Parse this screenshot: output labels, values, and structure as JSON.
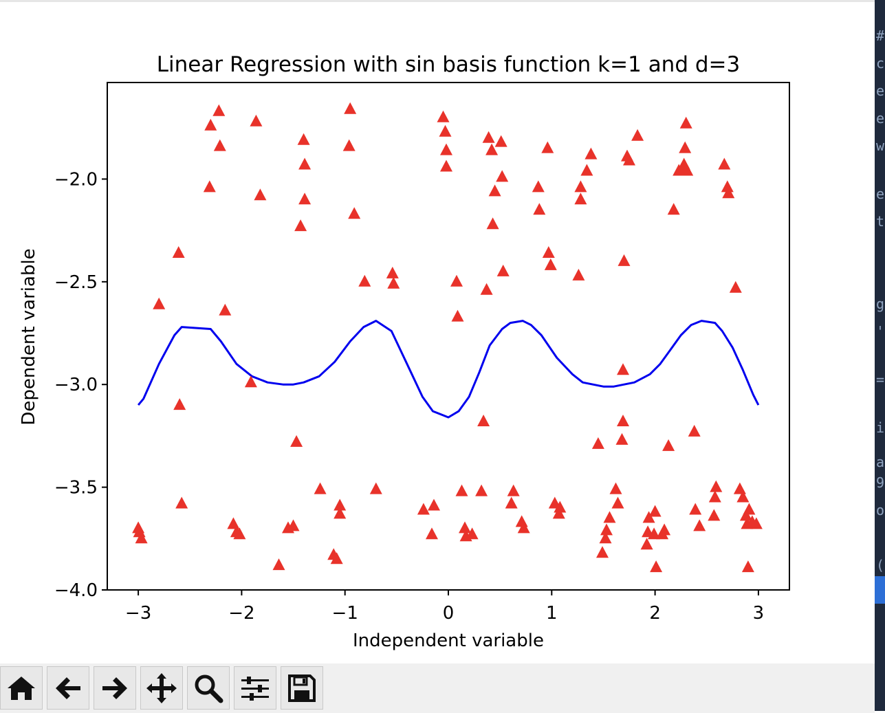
{
  "window": {
    "toolbar": {
      "buttons": [
        {
          "icon": "home-icon",
          "name": "home-button"
        },
        {
          "icon": "arrow-left-icon",
          "name": "back-button"
        },
        {
          "icon": "arrow-right-icon",
          "name": "forward-button"
        },
        {
          "icon": "move-icon",
          "name": "pan-button"
        },
        {
          "icon": "magnifier-icon",
          "name": "zoom-button"
        },
        {
          "icon": "sliders-icon",
          "name": "configure-subplots-button"
        },
        {
          "icon": "floppy-disk-icon",
          "name": "save-button"
        }
      ]
    },
    "background_fragments": [
      "#",
      "c",
      "e",
      "e",
      "w",
      "e",
      "t",
      "g",
      "'",
      "=",
      "i",
      "a",
      "9",
      "o",
      "("
    ]
  },
  "chart_data": {
    "type": "scatter",
    "title": "Linear Regression with sin basis function k=1 and d=3",
    "xlabel": "Independent variable",
    "ylabel": "Dependent variable",
    "xlim": [
      -3.3,
      3.3
    ],
    "ylim": [
      -4.0,
      -1.53
    ],
    "xticks": [
      -3,
      -2,
      -1,
      0,
      1,
      2,
      3
    ],
    "xtick_labels": [
      "−3",
      "−2",
      "−1",
      "0",
      "1",
      "2",
      "3"
    ],
    "yticks": [
      -4.0,
      -3.5,
      -3.0,
      -2.5,
      -2.0
    ],
    "ytick_labels": [
      "−4.0",
      "−3.5",
      "−3.0",
      "−2.5",
      "−2.0"
    ],
    "grid": false,
    "colors": {
      "scatter": "#e8322a",
      "line": "#0000ee"
    },
    "series": [
      {
        "kind": "scatter",
        "marker": "triangle",
        "points": [
          [
            -3.0,
            -3.7
          ],
          [
            -2.99,
            -3.72
          ],
          [
            -2.97,
            -3.75
          ],
          [
            -2.8,
            -2.61
          ],
          [
            -2.61,
            -2.36
          ],
          [
            -2.6,
            -3.1
          ],
          [
            -2.58,
            -3.58
          ],
          [
            -2.31,
            -2.04
          ],
          [
            -2.3,
            -1.74
          ],
          [
            -2.22,
            -1.67
          ],
          [
            -2.21,
            -1.84
          ],
          [
            -2.16,
            -2.64
          ],
          [
            -2.08,
            -3.68
          ],
          [
            -2.05,
            -3.72
          ],
          [
            -2.02,
            -3.73
          ],
          [
            -1.91,
            -2.99
          ],
          [
            -1.86,
            -1.72
          ],
          [
            -1.82,
            -2.08
          ],
          [
            -1.64,
            -3.88
          ],
          [
            -1.55,
            -3.7
          ],
          [
            -1.5,
            -3.69
          ],
          [
            -1.47,
            -3.28
          ],
          [
            -1.43,
            -2.23
          ],
          [
            -1.4,
            -1.81
          ],
          [
            -1.39,
            -1.93
          ],
          [
            -1.39,
            -2.1
          ],
          [
            -1.24,
            -3.51
          ],
          [
            -1.11,
            -3.83
          ],
          [
            -1.08,
            -3.85
          ],
          [
            -1.05,
            -3.59
          ],
          [
            -1.05,
            -3.63
          ],
          [
            -0.96,
            -1.84
          ],
          [
            -0.95,
            -1.66
          ],
          [
            -0.91,
            -2.17
          ],
          [
            -0.81,
            -2.5
          ],
          [
            -0.7,
            -3.51
          ],
          [
            -0.54,
            -2.46
          ],
          [
            -0.53,
            -2.51
          ],
          [
            -0.24,
            -3.61
          ],
          [
            -0.16,
            -3.73
          ],
          [
            -0.14,
            -3.59
          ],
          [
            -0.05,
            -1.7
          ],
          [
            -0.03,
            -1.77
          ],
          [
            -0.02,
            -1.86
          ],
          [
            -0.02,
            -1.94
          ],
          [
            0.08,
            -2.5
          ],
          [
            0.09,
            -2.67
          ],
          [
            0.13,
            -3.52
          ],
          [
            0.16,
            -3.7
          ],
          [
            0.17,
            -3.74
          ],
          [
            0.23,
            -3.73
          ],
          [
            0.32,
            -3.52
          ],
          [
            0.34,
            -3.18
          ],
          [
            0.37,
            -2.54
          ],
          [
            0.39,
            -1.8
          ],
          [
            0.42,
            -1.86
          ],
          [
            0.43,
            -2.22
          ],
          [
            0.45,
            -2.06
          ],
          [
            0.51,
            -1.82
          ],
          [
            0.52,
            -1.99
          ],
          [
            0.53,
            -2.45
          ],
          [
            0.61,
            -3.58
          ],
          [
            0.63,
            -3.52
          ],
          [
            0.71,
            -3.67
          ],
          [
            0.73,
            -3.7
          ],
          [
            0.87,
            -2.04
          ],
          [
            0.88,
            -2.15
          ],
          [
            0.96,
            -1.85
          ],
          [
            0.97,
            -2.36
          ],
          [
            0.99,
            -2.42
          ],
          [
            1.03,
            -3.58
          ],
          [
            1.07,
            -3.63
          ],
          [
            1.08,
            -3.6
          ],
          [
            1.26,
            -2.47
          ],
          [
            1.28,
            -2.04
          ],
          [
            1.28,
            -2.1
          ],
          [
            1.34,
            -1.96
          ],
          [
            1.38,
            -1.88
          ],
          [
            1.45,
            -3.29
          ],
          [
            1.49,
            -3.82
          ],
          [
            1.52,
            -3.75
          ],
          [
            1.53,
            -3.71
          ],
          [
            1.56,
            -3.65
          ],
          [
            1.62,
            -3.51
          ],
          [
            1.64,
            -3.58
          ],
          [
            1.68,
            -3.27
          ],
          [
            1.69,
            -3.18
          ],
          [
            1.69,
            -2.93
          ],
          [
            1.7,
            -2.4
          ],
          [
            1.73,
            -1.89
          ],
          [
            1.75,
            -1.91
          ],
          [
            1.83,
            -1.79
          ],
          [
            1.92,
            -3.78
          ],
          [
            1.93,
            -3.72
          ],
          [
            1.94,
            -3.65
          ],
          [
            1.99,
            -3.73
          ],
          [
            2.0,
            -3.62
          ],
          [
            2.01,
            -3.89
          ],
          [
            2.07,
            -3.73
          ],
          [
            2.09,
            -3.71
          ],
          [
            2.13,
            -3.3
          ],
          [
            2.18,
            -2.15
          ],
          [
            2.23,
            -1.96
          ],
          [
            2.26,
            -1.96
          ],
          [
            2.28,
            -1.93
          ],
          [
            2.29,
            -1.85
          ],
          [
            2.29,
            -1.95
          ],
          [
            2.3,
            -1.73
          ],
          [
            2.31,
            -1.96
          ],
          [
            2.38,
            -3.23
          ],
          [
            2.39,
            -3.61
          ],
          [
            2.43,
            -3.69
          ],
          [
            2.57,
            -3.64
          ],
          [
            2.58,
            -3.55
          ],
          [
            2.59,
            -3.5
          ],
          [
            2.67,
            -1.93
          ],
          [
            2.7,
            -2.04
          ],
          [
            2.71,
            -2.07
          ],
          [
            2.78,
            -2.53
          ],
          [
            2.82,
            -3.51
          ],
          [
            2.85,
            -3.55
          ],
          [
            2.88,
            -3.64
          ],
          [
            2.89,
            -3.68
          ],
          [
            2.9,
            -3.89
          ],
          [
            2.91,
            -3.61
          ],
          [
            2.94,
            -3.67
          ],
          [
            2.98,
            -3.68
          ]
        ]
      },
      {
        "kind": "line",
        "points": [
          [
            -3.0,
            -3.1
          ],
          [
            -2.95,
            -3.07
          ],
          [
            -2.8,
            -2.9
          ],
          [
            -2.65,
            -2.76
          ],
          [
            -2.58,
            -2.72
          ],
          [
            -2.3,
            -2.73
          ],
          [
            -2.2,
            -2.79
          ],
          [
            -2.05,
            -2.9
          ],
          [
            -1.9,
            -2.96
          ],
          [
            -1.75,
            -2.99
          ],
          [
            -1.6,
            -3.0
          ],
          [
            -1.5,
            -3.0
          ],
          [
            -1.4,
            -2.99
          ],
          [
            -1.25,
            -2.96
          ],
          [
            -1.1,
            -2.89
          ],
          [
            -0.95,
            -2.79
          ],
          [
            -0.82,
            -2.72
          ],
          [
            -0.7,
            -2.69
          ],
          [
            -0.55,
            -2.74
          ],
          [
            -0.4,
            -2.9
          ],
          [
            -0.25,
            -3.06
          ],
          [
            -0.15,
            -3.13
          ],
          [
            -0.05,
            -3.15
          ],
          [
            0.0,
            -3.16
          ],
          [
            0.1,
            -3.13
          ],
          [
            0.2,
            -3.06
          ],
          [
            0.3,
            -2.94
          ],
          [
            0.4,
            -2.81
          ],
          [
            0.52,
            -2.73
          ],
          [
            0.6,
            -2.7
          ],
          [
            0.72,
            -2.69
          ],
          [
            0.8,
            -2.71
          ],
          [
            0.9,
            -2.76
          ],
          [
            1.05,
            -2.87
          ],
          [
            1.2,
            -2.95
          ],
          [
            1.3,
            -2.99
          ],
          [
            1.4,
            -3.0
          ],
          [
            1.5,
            -3.01
          ],
          [
            1.6,
            -3.01
          ],
          [
            1.7,
            -3.0
          ],
          [
            1.8,
            -2.99
          ],
          [
            1.95,
            -2.95
          ],
          [
            2.05,
            -2.9
          ],
          [
            2.15,
            -2.83
          ],
          [
            2.25,
            -2.76
          ],
          [
            2.35,
            -2.71
          ],
          [
            2.45,
            -2.69
          ],
          [
            2.58,
            -2.7
          ],
          [
            2.65,
            -2.74
          ],
          [
            2.75,
            -2.82
          ],
          [
            2.85,
            -2.93
          ],
          [
            2.95,
            -3.05
          ],
          [
            3.0,
            -3.1
          ]
        ]
      }
    ]
  }
}
